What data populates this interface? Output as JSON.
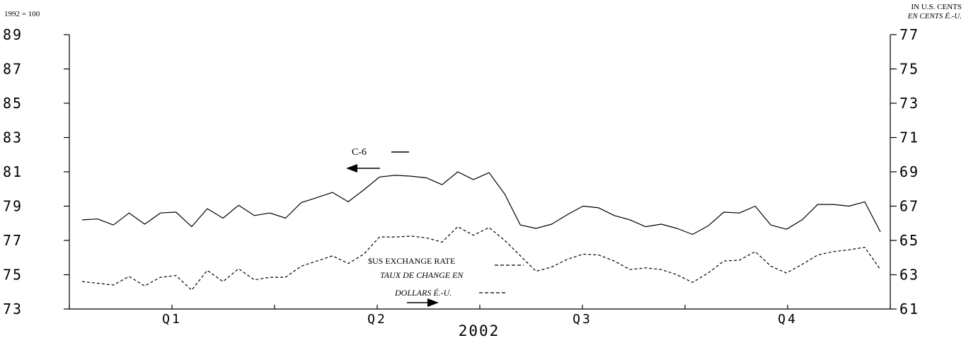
{
  "chart_data": {
    "type": "line",
    "top_left_label": "1992 = 100",
    "top_right_label_en": "IN U.S. CENTS",
    "top_right_label_fr": "EN CENTS É.-U.",
    "x_label": "2002",
    "quarters": [
      "Q1",
      "Q2",
      "Q3",
      "Q4"
    ],
    "y_left": {
      "ticks": [
        73,
        75,
        77,
        79,
        81,
        83,
        85,
        87,
        89
      ],
      "range": [
        73,
        89
      ]
    },
    "y_right": {
      "ticks": [
        61,
        63,
        65,
        67,
        69,
        71,
        73,
        75,
        77
      ],
      "range": [
        61,
        77
      ]
    },
    "series": [
      {
        "name": "C-6",
        "axis": "left",
        "style": "solid",
        "values": [
          78.2,
          78.25,
          77.9,
          78.6,
          77.95,
          78.6,
          78.65,
          77.8,
          78.85,
          78.3,
          79.05,
          78.45,
          78.6,
          78.3,
          79.2,
          79.5,
          79.8,
          79.25,
          79.95,
          80.7,
          80.8,
          80.75,
          80.65,
          80.25,
          81.0,
          80.55,
          80.95,
          79.7,
          77.9,
          77.7,
          77.95,
          78.5,
          79.0,
          78.9,
          78.45,
          78.2,
          77.8,
          77.95,
          77.7,
          77.35,
          77.85,
          78.65,
          78.6,
          79.0,
          77.9,
          77.65,
          78.2,
          79.1,
          79.1,
          79.0,
          79.25,
          77.5
        ]
      },
      {
        "name": "$US EXCHANGE RATE",
        "name_fr_line1": "TAUX DE CHANGE EN",
        "name_fr_line2": "DOLLARS É.-U.",
        "axis": "right",
        "style": "dashed",
        "values": [
          62.6,
          62.5,
          62.4,
          62.9,
          62.35,
          62.85,
          62.95,
          62.1,
          63.25,
          62.6,
          63.35,
          62.7,
          62.85,
          62.85,
          63.5,
          63.8,
          64.1,
          63.65,
          64.2,
          65.2,
          65.2,
          65.25,
          65.15,
          64.9,
          65.8,
          65.3,
          65.75,
          65.0,
          64.1,
          63.2,
          63.45,
          63.9,
          64.2,
          64.15,
          63.8,
          63.3,
          63.4,
          63.3,
          63.0,
          62.55,
          63.1,
          63.8,
          63.85,
          64.35,
          63.5,
          63.1,
          63.6,
          64.15,
          64.35,
          64.45,
          64.6,
          63.3
        ]
      }
    ],
    "grid": false,
    "legend": "inline-annotations"
  }
}
